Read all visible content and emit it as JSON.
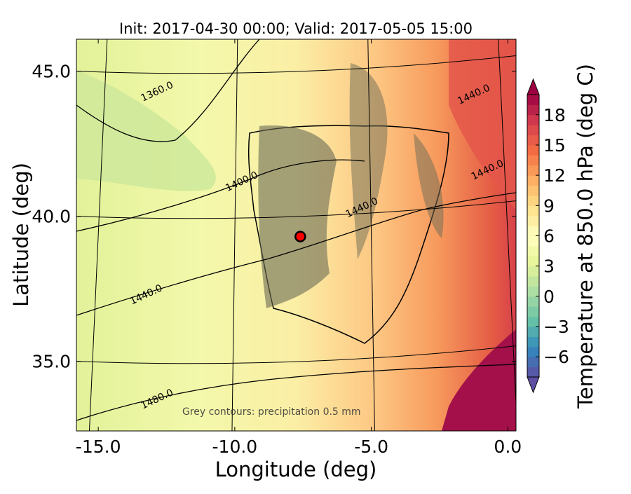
{
  "chart_data": {
    "type": "heatmap",
    "title": "Init: 2017-04-30 00:00; Valid: 2017-05-05 15:00",
    "xlabel": "Longitude (deg)",
    "ylabel": "Latitude (deg)",
    "xlim": [
      -15.8,
      0.3
    ],
    "ylim": [
      32.6,
      46.1
    ],
    "x_ticks": [
      {
        "value": -15.0,
        "label": "-15.0"
      },
      {
        "value": -10.0,
        "label": "-10.0"
      },
      {
        "value": -5.0,
        "label": "-5.0"
      },
      {
        "value": 0.0,
        "label": "0.0"
      }
    ],
    "y_ticks": [
      {
        "value": 35.0,
        "label": "35.0"
      },
      {
        "value": 40.0,
        "label": "40.0"
      },
      {
        "value": 45.0,
        "label": "45.0"
      }
    ],
    "colorbar": {
      "label": "Temperature at 850.0 hPa (deg C)",
      "range": [
        -8,
        20
      ],
      "ticks": [
        {
          "value": -6,
          "label": "−6"
        },
        {
          "value": -3,
          "label": "−3"
        },
        {
          "value": 0,
          "label": "0"
        },
        {
          "value": 3,
          "label": "3"
        },
        {
          "value": 6,
          "label": "6"
        },
        {
          "value": 9,
          "label": "9"
        },
        {
          "value": 12,
          "label": "12"
        },
        {
          "value": 15,
          "label": "15"
        },
        {
          "value": 18,
          "label": "18"
        }
      ],
      "colormap": [
        "#5e4fa2",
        "#3288bd",
        "#66c2a5",
        "#abdda4",
        "#e6f598",
        "#ffffbf",
        "#fee08b",
        "#fdae61",
        "#f46d43",
        "#d53e4f",
        "#9e0142"
      ]
    },
    "geopotential_contours": [
      {
        "label": "1360.0",
        "x": -12.8,
        "y": 44.2
      },
      {
        "label": "1400.0",
        "x": -9.7,
        "y": 41.1
      },
      {
        "label": "1440.0",
        "x": -13.2,
        "y": 37.2
      },
      {
        "label": "1480.0",
        "x": -12.8,
        "y": 33.6
      },
      {
        "label": "1440.0",
        "x": -5.3,
        "y": 40.2
      },
      {
        "label": "1440.0",
        "x": -1.2,
        "y": 44.1
      },
      {
        "label": "1440.0",
        "x": -0.7,
        "y": 41.5
      }
    ],
    "annotation": "Grey contours: precipitation       0.5 mm",
    "marker": {
      "lon": -7.6,
      "lat": 39.3,
      "color": "#ff0000"
    }
  }
}
